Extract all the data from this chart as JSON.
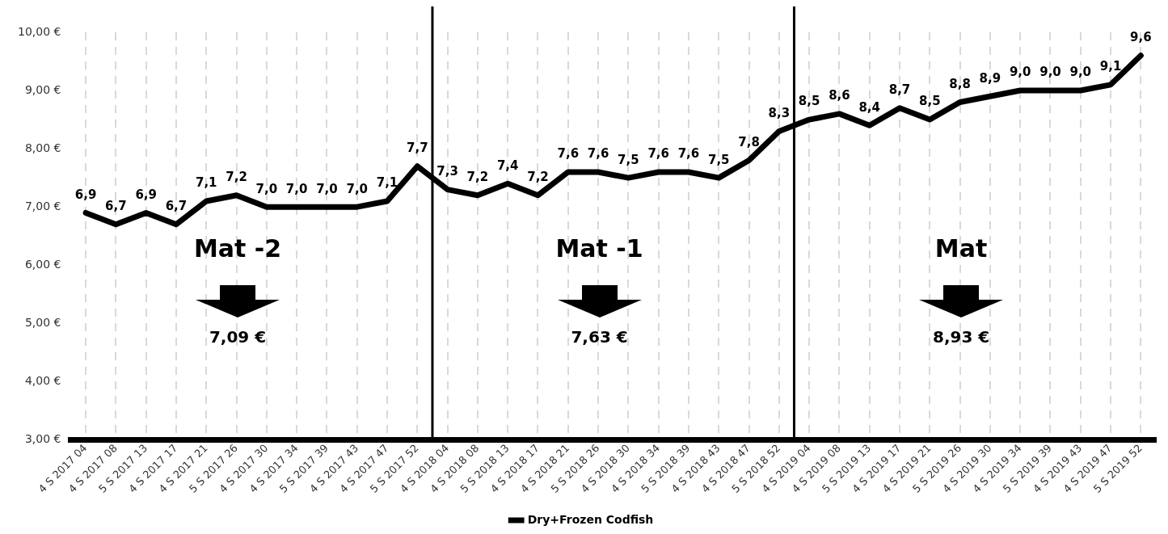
{
  "chart_data": {
    "type": "line",
    "categories": [
      "4 S 2017 04",
      "4 S 2017 08",
      "5 S 2017 13",
      "4 S 2017 17",
      "4 S 2017 21",
      "5 S 2017 26",
      "4 S 2017 30",
      "4 S 2017 34",
      "5 S 2017 39",
      "4 S 2017 43",
      "4 S 2017 47",
      "5 S 2017 52",
      "4 S 2018 04",
      "4 S 2018 08",
      "5 S 2018 13",
      "4 S 2018 17",
      "4 S 2018 21",
      "5 S 2018 26",
      "4 S 2018 30",
      "4 S 2018 34",
      "5 S 2018 39",
      "4 S 2018 43",
      "4 S 2018 47",
      "5 S 2018 52",
      "4 S 2019 04",
      "4 S 2019 08",
      "5 S 2019 13",
      "4 S 2019 17",
      "4 S 2019 21",
      "5 S 2019 26",
      "4 S 2019 30",
      "4 S 2019 34",
      "5 S 2019 39",
      "4 S 2019 43",
      "4 S 2019 47",
      "5 S 2019 52"
    ],
    "series": [
      {
        "name": "Dry+Frozen Codfish",
        "color": "#000000",
        "values": [
          6.9,
          6.7,
          6.9,
          6.7,
          7.1,
          7.2,
          7.0,
          7.0,
          7.0,
          7.0,
          7.1,
          7.7,
          7.3,
          7.2,
          7.4,
          7.2,
          7.6,
          7.6,
          7.5,
          7.6,
          7.6,
          7.5,
          7.8,
          8.3,
          8.5,
          8.6,
          8.4,
          8.7,
          8.5,
          8.8,
          8.9,
          9.0,
          9.0,
          9.0,
          9.1,
          9.6
        ],
        "value_labels": [
          "6,9",
          "6,7",
          "6,9",
          "6,7",
          "7,1",
          "7,2",
          "7,0",
          "7,0",
          "7,0",
          "7,0",
          "7,1",
          "7,7",
          "7,3",
          "7,2",
          "7,4",
          "7,2",
          "7,6",
          "7,6",
          "7,5",
          "7,6",
          "7,6",
          "7,5",
          "7,8",
          "8,3",
          "8,5",
          "8,6",
          "8,4",
          "8,7",
          "8,5",
          "8,8",
          "8,9",
          "9,0",
          "9,0",
          "9,0",
          "9,1",
          "9,6"
        ]
      }
    ],
    "ylim": [
      3,
      10
    ],
    "yticks": [
      {
        "value": 3,
        "label": "3,00 €"
      },
      {
        "value": 4,
        "label": "4,00 €"
      },
      {
        "value": 5,
        "label": "5,00 €"
      },
      {
        "value": 6,
        "label": "6,00 €"
      },
      {
        "value": 7,
        "label": "7,00 €"
      },
      {
        "value": 8,
        "label": "8,00 €"
      },
      {
        "value": 9,
        "label": "9,00 €"
      },
      {
        "value": 10,
        "label": "10,00 €"
      }
    ],
    "grid": "x",
    "legend": "bottom",
    "marker": "none",
    "line_style": "solid",
    "annotations": [
      "Mat -2",
      "7,09 €",
      "Mat -1",
      "7,63 €",
      "Mat",
      "8,93 €"
    ]
  }
}
